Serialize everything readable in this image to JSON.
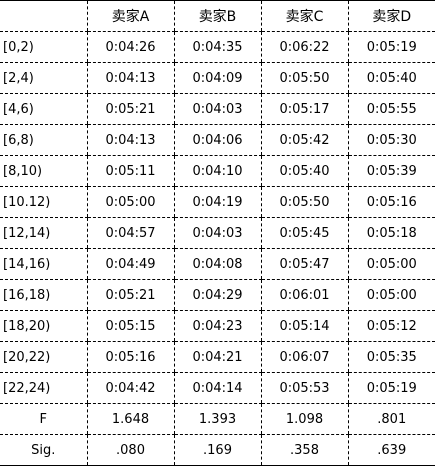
{
  "table": {
    "header": [
      "",
      "卖家A",
      "卖家B",
      "卖家C",
      "卖家D"
    ],
    "rows": [
      [
        "[0,2)",
        "0:04:26",
        "0:04:35",
        "0:06:22",
        "0:05:19"
      ],
      [
        "[2,4)",
        "0:04:13",
        "0:04:09",
        "0:05:50",
        "0:05:40"
      ],
      [
        "[4,6)",
        "0:05:21",
        "0:04:03",
        "0:05:17",
        "0:05:55"
      ],
      [
        "[6,8)",
        "0:04:13",
        "0:04:06",
        "0:05:42",
        "0:05:30"
      ],
      [
        "[8,10)",
        "0:05:11",
        "0:04:10",
        "0:05:40",
        "0:05:39"
      ],
      [
        "[10.12)",
        "0:05:00",
        "0:04:19",
        "0:05:50",
        "0:05:16"
      ],
      [
        "[12,14)",
        "0:04:57",
        "0:04:03",
        "0:05:45",
        "0:05:18"
      ],
      [
        "[14,16)",
        "0:04:49",
        "0:04:08",
        "0:05:47",
        "0:05:00"
      ],
      [
        "[16,18)",
        "0:05:21",
        "0:04:29",
        "0:06:01",
        "0:05:00"
      ],
      [
        "[18,20)",
        "0:05:15",
        "0:04:23",
        "0:05:14",
        "0:05:12"
      ],
      [
        "[20,22)",
        "0:05:16",
        "0:04:21",
        "0:06:07",
        "0:05:35"
      ],
      [
        "[22,24)",
        "0:04:42",
        "0:04:14",
        "0:05:53",
        "0:05:19"
      ]
    ],
    "stats": [
      [
        "F",
        "1.648",
        "1.393",
        "1.098",
        ".801"
      ],
      [
        "Sig.",
        ".080",
        ".169",
        ".358",
        ".639"
      ]
    ]
  }
}
